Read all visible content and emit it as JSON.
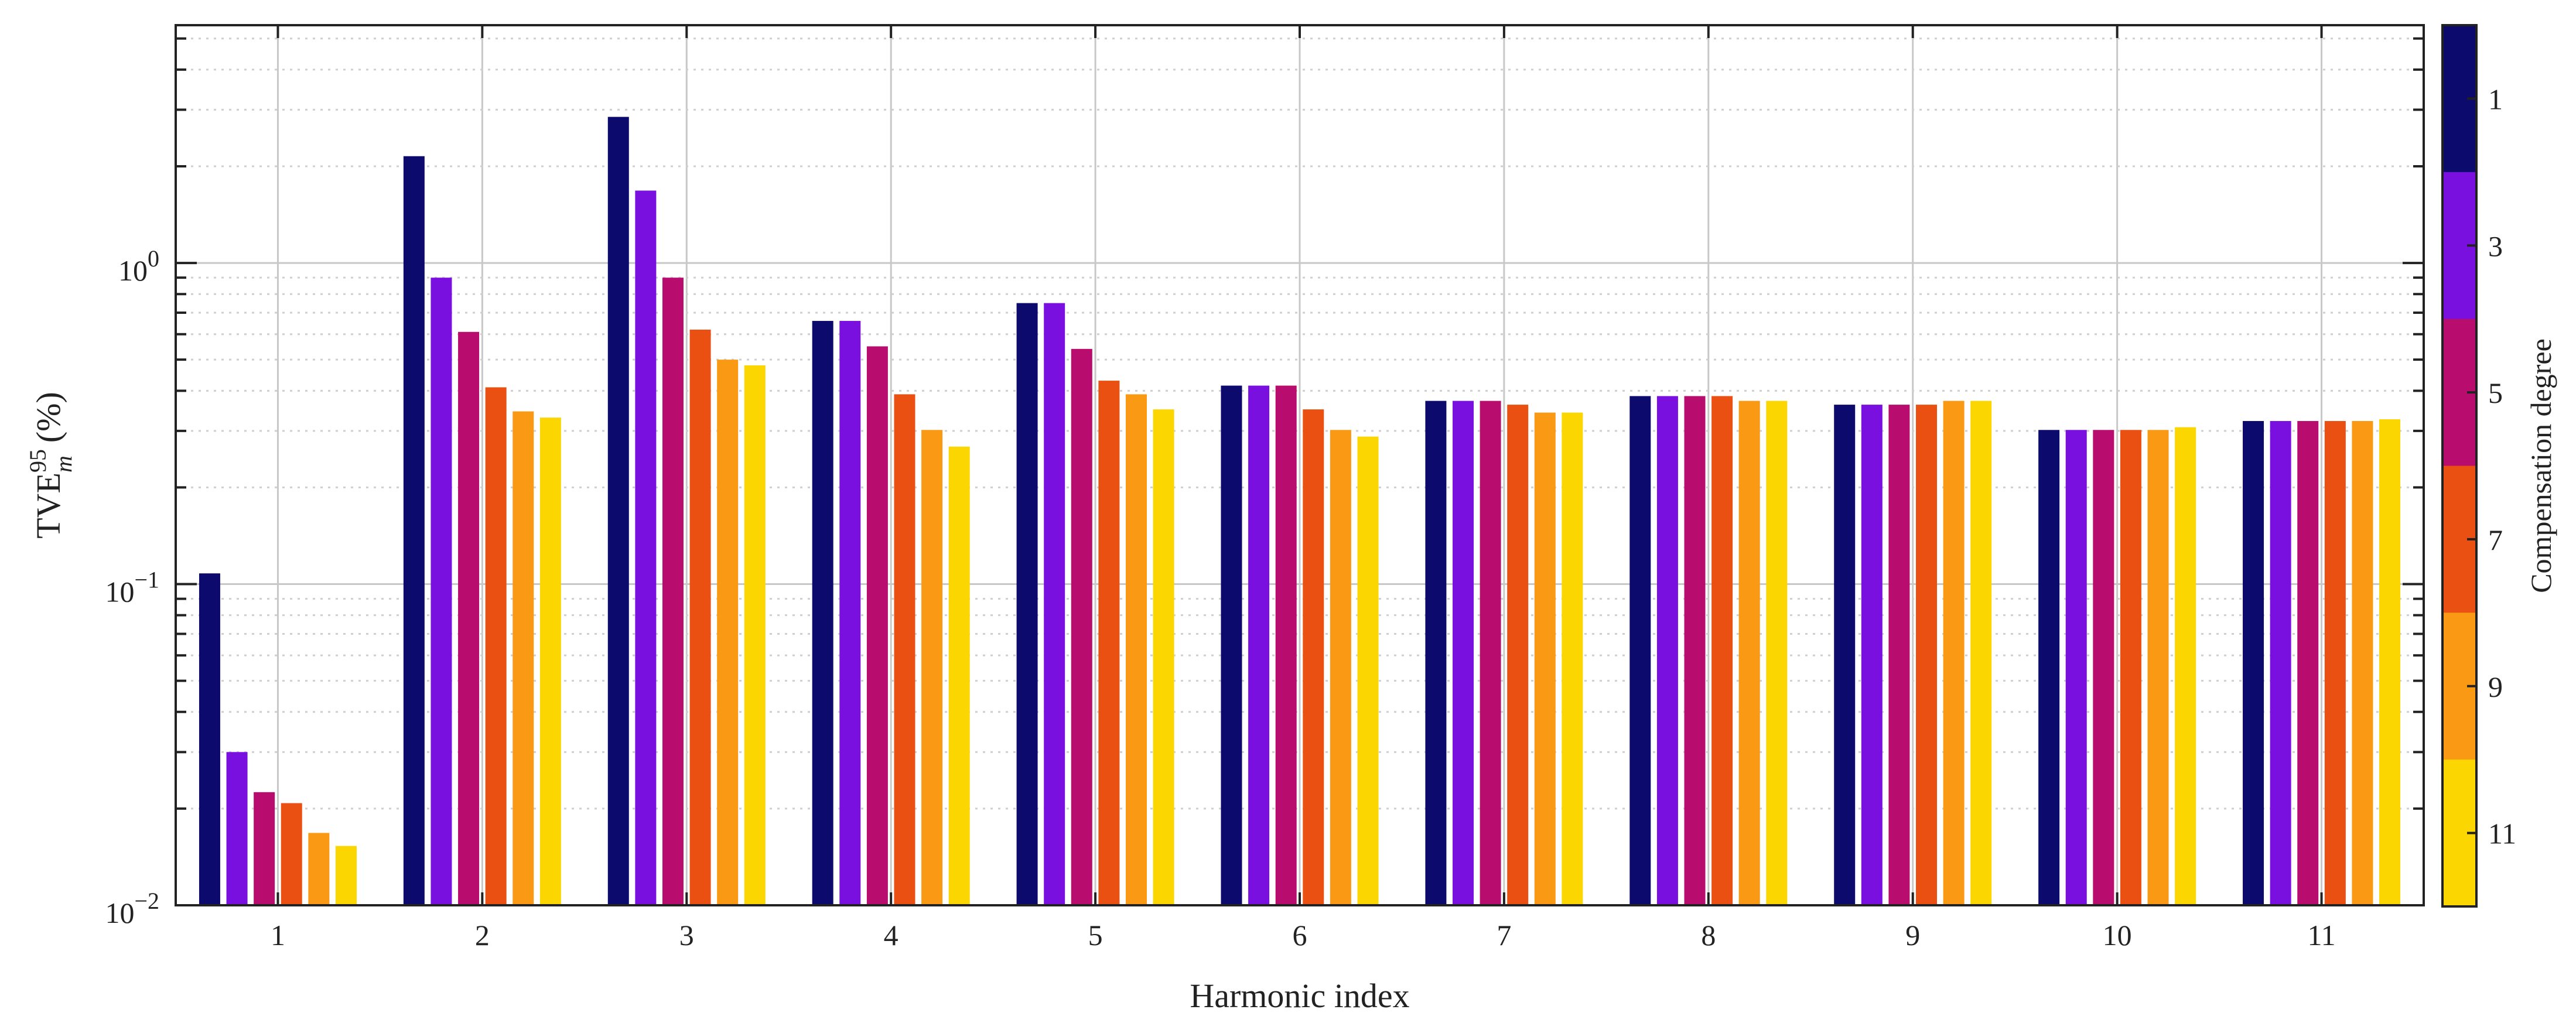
{
  "chart_data": {
    "type": "bar",
    "yscale": "log",
    "ylim": [
      0.01,
      5.5
    ],
    "xlabel": "Harmonic index",
    "ylabel": {
      "base": "TVE",
      "superscript": "95",
      "subscript": "m",
      "unit": "(%)"
    },
    "ytick_labels": [
      {
        "value": 1,
        "base": "10",
        "exponent": "0"
      },
      {
        "value": 0.1,
        "base": "10",
        "exponent": "−1"
      },
      {
        "value": 0.01,
        "base": "10",
        "exponent": "−2"
      }
    ],
    "categories": [
      "1",
      "2",
      "3",
      "4",
      "5",
      "6",
      "7",
      "8",
      "9",
      "10",
      "11"
    ],
    "series": [
      {
        "name": "1",
        "color": "#0d0a6e",
        "values": [
          0.108,
          2.15,
          2.85,
          0.66,
          0.75,
          0.415,
          0.372,
          0.385,
          0.362,
          0.302,
          0.322
        ]
      },
      {
        "name": "3",
        "color": "#7a10e0",
        "values": [
          0.03,
          0.9,
          1.68,
          0.66,
          0.75,
          0.415,
          0.372,
          0.385,
          0.362,
          0.302,
          0.322
        ]
      },
      {
        "name": "5",
        "color": "#b80c6e",
        "values": [
          0.0225,
          0.61,
          0.9,
          0.55,
          0.54,
          0.415,
          0.372,
          0.385,
          0.362,
          0.302,
          0.322
        ]
      },
      {
        "name": "7",
        "color": "#ea5012",
        "values": [
          0.0208,
          0.41,
          0.62,
          0.39,
          0.43,
          0.35,
          0.362,
          0.385,
          0.362,
          0.302,
          0.322
        ]
      },
      {
        "name": "9",
        "color": "#fa9a14",
        "values": [
          0.0168,
          0.345,
          0.5,
          0.302,
          0.39,
          0.302,
          0.342,
          0.372,
          0.372,
          0.302,
          0.322
        ]
      },
      {
        "name": "11",
        "color": "#fbd600",
        "values": [
          0.0153,
          0.33,
          0.48,
          0.268,
          0.35,
          0.288,
          0.342,
          0.372,
          0.372,
          0.308,
          0.326
        ]
      }
    ],
    "colorbar": {
      "title": "Compensation degree",
      "tick_labels": [
        "1",
        "3",
        "5",
        "7",
        "9",
        "11"
      ]
    },
    "grid": true
  }
}
